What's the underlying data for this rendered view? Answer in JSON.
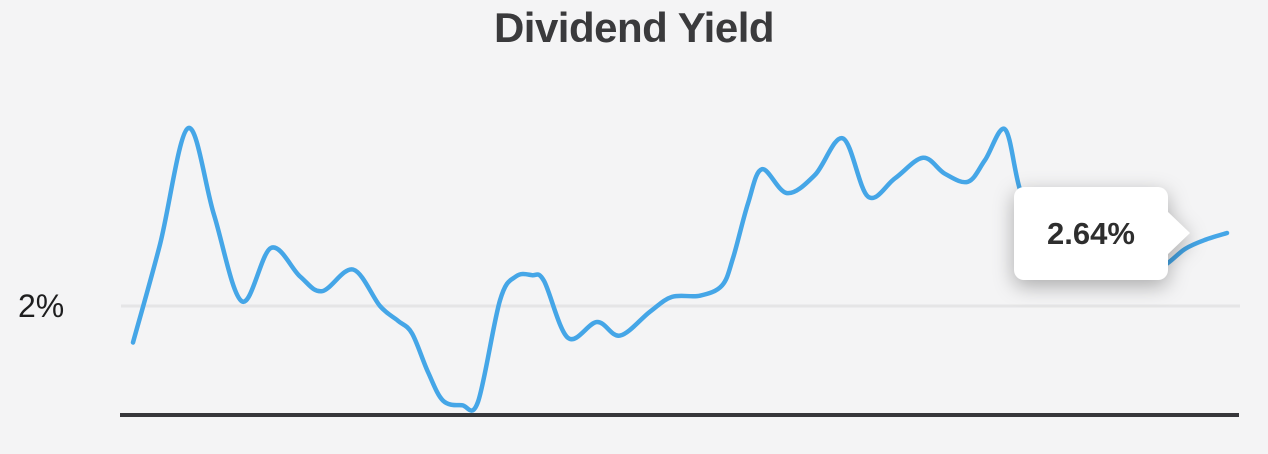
{
  "title": "Dividend Yield",
  "y_axis": {
    "gridline_label": "2%"
  },
  "tooltip": {
    "value_label": "2.64%"
  },
  "colors": {
    "background": "#f4f4f5",
    "line": "#45a6e7",
    "gridline": "#e5e5e6",
    "axis": "#37373a",
    "title_text": "#3a3a3c",
    "axis_label_text": "#1e1e1f",
    "tooltip_bg": "#ffffff",
    "tooltip_text": "#2e2e2e"
  },
  "chart_data": {
    "type": "line",
    "title": "Dividend Yield",
    "series_name": "Dividend Yield",
    "xlabel": "",
    "ylabel": "",
    "x_tick_labels": [],
    "legend": "none",
    "grid": "single horizontal gridline at 2%",
    "gridline": {
      "value_pct": 2,
      "label": "2%"
    },
    "latest_point": {
      "value_pct": 2.64,
      "label": "2.64%"
    },
    "ylim_pct": [
      1.0,
      3.8
    ],
    "point_format": "[x_px, yield_pct]",
    "points": [
      [
        133,
        1.68
      ],
      [
        160,
        2.54
      ],
      [
        188,
        3.56
      ],
      [
        214,
        2.8
      ],
      [
        242,
        2.04
      ],
      [
        271,
        2.51
      ],
      [
        300,
        2.26
      ],
      [
        322,
        2.13
      ],
      [
        353,
        2.32
      ],
      [
        380,
        2.0
      ],
      [
        398,
        1.87
      ],
      [
        412,
        1.76
      ],
      [
        428,
        1.42
      ],
      [
        443,
        1.17
      ],
      [
        462,
        1.13
      ],
      [
        478,
        1.16
      ],
      [
        500,
        2.05
      ],
      [
        516,
        2.26
      ],
      [
        532,
        2.27
      ],
      [
        544,
        2.22
      ],
      [
        568,
        1.72
      ],
      [
        597,
        1.86
      ],
      [
        620,
        1.74
      ],
      [
        650,
        1.95
      ],
      [
        672,
        2.08
      ],
      [
        700,
        2.09
      ],
      [
        722,
        2.18
      ],
      [
        733,
        2.42
      ],
      [
        748,
        2.9
      ],
      [
        762,
        3.2
      ],
      [
        787,
        2.99
      ],
      [
        815,
        3.15
      ],
      [
        843,
        3.47
      ],
      [
        868,
        2.96
      ],
      [
        895,
        3.12
      ],
      [
        923,
        3.3
      ],
      [
        945,
        3.16
      ],
      [
        968,
        3.09
      ],
      [
        985,
        3.28
      ],
      [
        1005,
        3.55
      ],
      [
        1020,
        3.02
      ],
      [
        1040,
        2.62
      ],
      [
        1070,
        2.38
      ],
      [
        1105,
        2.27
      ],
      [
        1140,
        2.26
      ],
      [
        1165,
        2.36
      ],
      [
        1185,
        2.5
      ],
      [
        1205,
        2.58
      ],
      [
        1227,
        2.64
      ]
    ]
  }
}
